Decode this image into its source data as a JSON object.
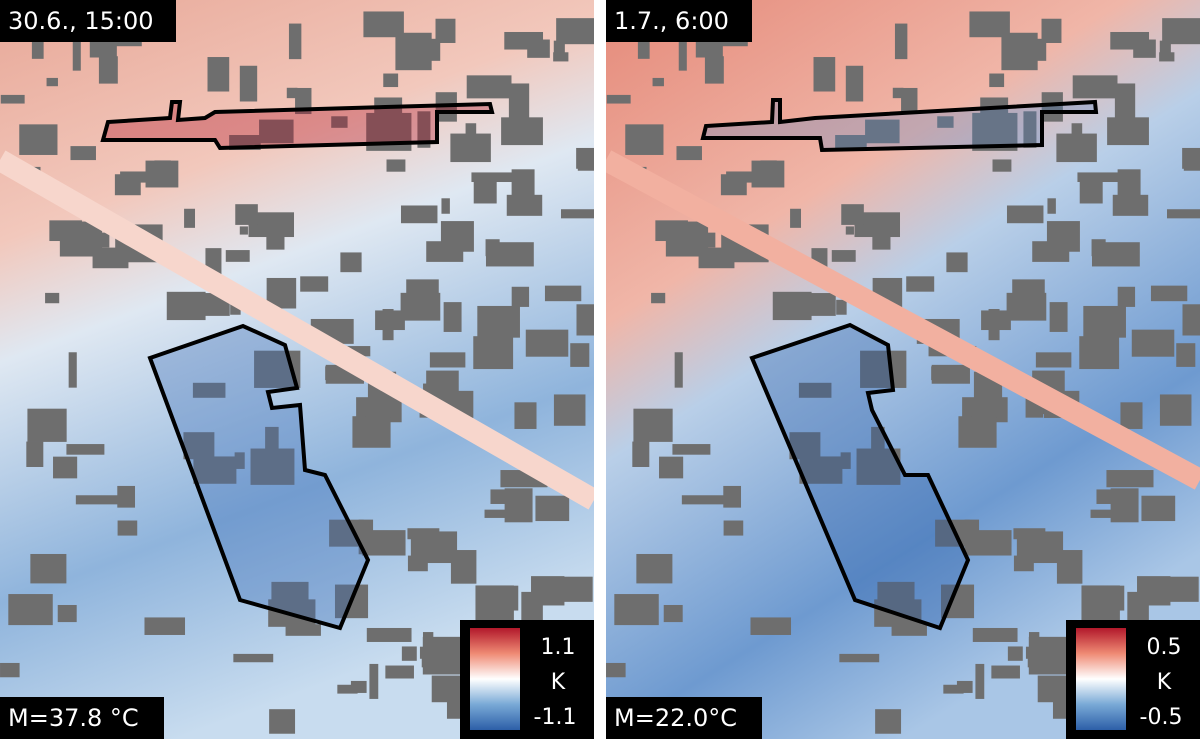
{
  "panels": [
    {
      "timestamp": "30.6., 15:00",
      "mean": "M=37.8 °C",
      "colorbar": {
        "max": "1.1",
        "unit": "K",
        "min": "-1.1"
      }
    },
    {
      "timestamp": "1.7., 6:00",
      "mean": "M=22.0°C",
      "colorbar": {
        "max": "0.5",
        "unit": "K",
        "min": "-0.5"
      }
    }
  ]
}
